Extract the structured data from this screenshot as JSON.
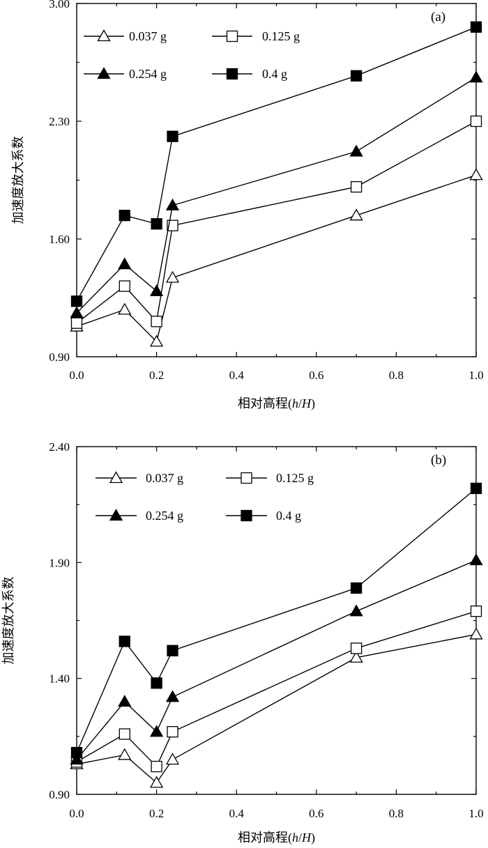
{
  "chart_data": [
    {
      "type": "line",
      "panel_label": "(a)",
      "xlabel": "相对高程(h/H)",
      "ylabel": "加速度放大系数",
      "xlim": [
        0.0,
        1.0
      ],
      "ylim": [
        0.9,
        3.0
      ],
      "xticks": [
        "0.0",
        "0.2",
        "0.4",
        "0.6",
        "0.8",
        "1.0"
      ],
      "yticks": [
        "0.90",
        "1.60",
        "2.30",
        "3.00"
      ],
      "xtick_values": [
        0.0,
        0.2,
        0.4,
        0.6,
        0.8,
        1.0
      ],
      "ytick_values": [
        0.9,
        1.6,
        2.3,
        3.0
      ],
      "legend_position": "top-left",
      "x": [
        0.0,
        0.12,
        0.2,
        0.24,
        0.7,
        1.0
      ],
      "series": [
        {
          "name": "0.037 g",
          "marker": "triangle-open",
          "values": [
            1.08,
            1.18,
            0.99,
            1.37,
            1.74,
            1.98
          ]
        },
        {
          "name": "0.125 g",
          "marker": "square-open",
          "values": [
            1.1,
            1.32,
            1.11,
            1.68,
            1.91,
            2.3
          ]
        },
        {
          "name": "0.254 g",
          "marker": "triangle-filled",
          "values": [
            1.16,
            1.45,
            1.29,
            1.8,
            2.12,
            2.56
          ]
        },
        {
          "name": "0.4 g",
          "marker": "square-filled",
          "values": [
            1.23,
            1.74,
            1.69,
            2.21,
            2.57,
            2.86
          ]
        }
      ]
    },
    {
      "type": "line",
      "panel_label": "(b)",
      "xlabel": "相对高程(h/H)",
      "ylabel": "加速度放大系数",
      "xlim": [
        0.0,
        1.0
      ],
      "ylim": [
        0.9,
        2.4
      ],
      "xticks": [
        "0.0",
        "0.2",
        "0.4",
        "0.6",
        "0.8",
        "1.0"
      ],
      "yticks": [
        "0.90",
        "1.40",
        "1.90",
        "2.40"
      ],
      "xtick_values": [
        0.0,
        0.2,
        0.4,
        0.6,
        0.8,
        1.0
      ],
      "ytick_values": [
        0.9,
        1.4,
        1.9,
        2.4
      ],
      "legend_position": "top-left",
      "x": [
        0.0,
        0.12,
        0.2,
        0.24,
        0.7,
        1.0
      ],
      "series": [
        {
          "name": "0.037 g",
          "marker": "triangle-open",
          "values": [
            1.03,
            1.07,
            0.95,
            1.05,
            1.49,
            1.59
          ]
        },
        {
          "name": "0.125 g",
          "marker": "square-open",
          "values": [
            1.04,
            1.16,
            1.02,
            1.17,
            1.53,
            1.69
          ]
        },
        {
          "name": "0.254 g",
          "marker": "triangle-filled",
          "values": [
            1.05,
            1.3,
            1.17,
            1.32,
            1.69,
            1.91
          ]
        },
        {
          "name": "0.4 g",
          "marker": "square-filled",
          "values": [
            1.08,
            1.56,
            1.38,
            1.52,
            1.79,
            2.22
          ]
        }
      ]
    }
  ]
}
